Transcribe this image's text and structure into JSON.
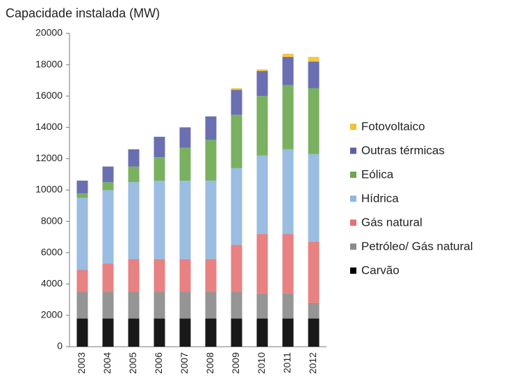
{
  "chart_data": {
    "type": "stacked_bar",
    "title": "Capacidade instalada (MW)",
    "categories": [
      "2003",
      "2004",
      "2005",
      "2006",
      "2007",
      "2008",
      "2009",
      "2010",
      "2011",
      "2012"
    ],
    "series": [
      {
        "name": "Carvão",
        "color": "#000000",
        "values": [
          1800,
          1800,
          1800,
          1800,
          1800,
          1800,
          1800,
          1800,
          1800,
          1800
        ]
      },
      {
        "name": "Petróleo/ Gás natural",
        "color": "#8a8a8a",
        "values": [
          1700,
          1700,
          1700,
          1700,
          1700,
          1700,
          1700,
          1600,
          1600,
          1000
        ]
      },
      {
        "name": "Gás natural",
        "color": "#e57373",
        "values": [
          1400,
          1800,
          2100,
          2100,
          2100,
          2100,
          3000,
          3800,
          3800,
          3900
        ]
      },
      {
        "name": "Hídrica",
        "color": "#8fb6de",
        "values": [
          4600,
          4700,
          4900,
          5000,
          5000,
          5000,
          4900,
          5000,
          5400,
          5600
        ]
      },
      {
        "name": "Eólica",
        "color": "#6aa84f",
        "values": [
          300,
          500,
          1000,
          1500,
          2100,
          2600,
          3400,
          3800,
          4100,
          4200
        ]
      },
      {
        "name": "Outras térmicas",
        "color": "#5a5fa8",
        "values": [
          800,
          1000,
          1100,
          1300,
          1300,
          1500,
          1600,
          1600,
          1800,
          1700
        ]
      },
      {
        "name": "Fotovoltaico",
        "color": "#f2c232",
        "values": [
          0,
          0,
          0,
          0,
          0,
          0,
          100,
          100,
          200,
          300
        ]
      }
    ],
    "ylim": [
      0,
      20000
    ],
    "yticks": [
      0,
      2000,
      4000,
      6000,
      8000,
      10000,
      12000,
      14000,
      16000,
      18000,
      20000
    ],
    "grid": false
  }
}
